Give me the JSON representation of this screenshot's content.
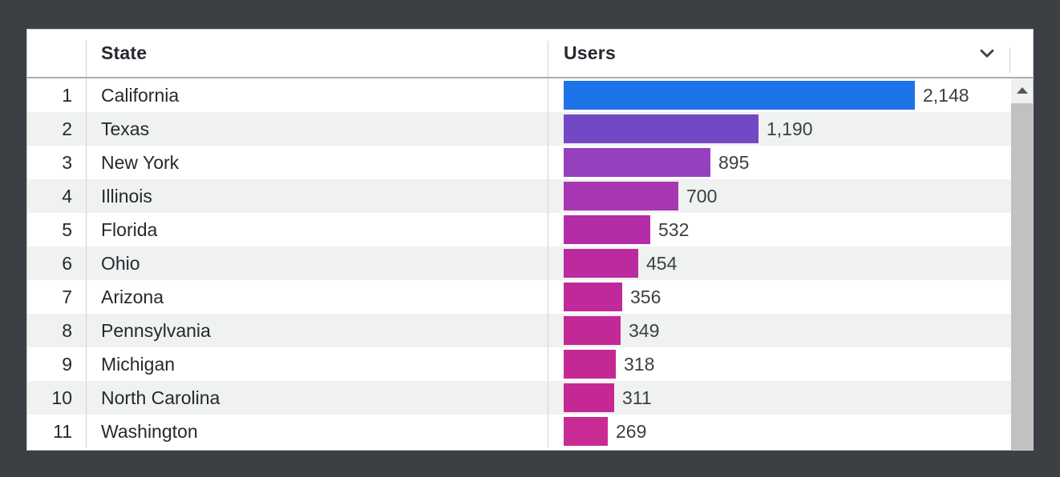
{
  "header": {
    "state_label": "State",
    "users_label": "Users",
    "sort_icon": "chevron-down-icon"
  },
  "table": {
    "rows": [
      {
        "rank": "1",
        "state": "California",
        "users_display": "2,148",
        "users_value": 2148,
        "bar_color": "#1D73E8"
      },
      {
        "rank": "2",
        "state": "Texas",
        "users_display": "1,190",
        "users_value": 1190,
        "bar_color": "#7248C6"
      },
      {
        "rank": "3",
        "state": "New York",
        "users_display": "895",
        "users_value": 895,
        "bar_color": "#9540BC"
      },
      {
        "rank": "4",
        "state": "Illinois",
        "users_display": "700",
        "users_value": 700,
        "bar_color": "#A737B2"
      },
      {
        "rank": "5",
        "state": "Florida",
        "users_display": "532",
        "users_value": 532,
        "bar_color": "#B42DA6"
      },
      {
        "rank": "6",
        "state": "Ohio",
        "users_display": "454",
        "users_value": 454,
        "bar_color": "#BB2B9F"
      },
      {
        "rank": "7",
        "state": "Arizona",
        "users_display": "356",
        "users_value": 356,
        "bar_color": "#C02999"
      },
      {
        "rank": "8",
        "state": "Pennsylvania",
        "users_display": "349",
        "users_value": 349,
        "bar_color": "#C22996"
      },
      {
        "rank": "9",
        "state": "Michigan",
        "users_display": "318",
        "users_value": 318,
        "bar_color": "#C42893"
      },
      {
        "rank": "10",
        "state": "North Carolina",
        "users_display": "311",
        "users_value": 311,
        "bar_color": "#C52892"
      },
      {
        "rank": "11",
        "state": "Washington",
        "users_display": "269",
        "users_value": 269,
        "bar_color": "#C82B94"
      }
    ],
    "max_value": 2148
  },
  "chart_data": {
    "type": "bar",
    "orientation": "horizontal",
    "categories": [
      "California",
      "Texas",
      "New York",
      "Illinois",
      "Florida",
      "Ohio",
      "Arizona",
      "Pennsylvania",
      "Michigan",
      "North Carolina",
      "Washington"
    ],
    "values": [
      2148,
      1190,
      895,
      700,
      532,
      454,
      356,
      349,
      318,
      311,
      269
    ],
    "title": "",
    "xlabel": "Users",
    "ylabel": "State",
    "xlim": [
      0,
      2148
    ],
    "color_scale": {
      "start": "#1D73E8",
      "end": "#C82B94"
    },
    "legend": false,
    "grid": false
  },
  "scrollbar": {
    "up_icon": "triangle-up-icon"
  },
  "colors": {
    "stage_background": "#3c4045",
    "panel_background": "#ffffff",
    "zebra_stripe": "#f0f1f1",
    "divider": "#cfd3d6",
    "header_border": "#a8acb0",
    "text_primary": "#24292f",
    "text_value": "#3c4043",
    "scroll_track": "#f1f1f1",
    "scroll_thumb": "#c1c1c1"
  }
}
